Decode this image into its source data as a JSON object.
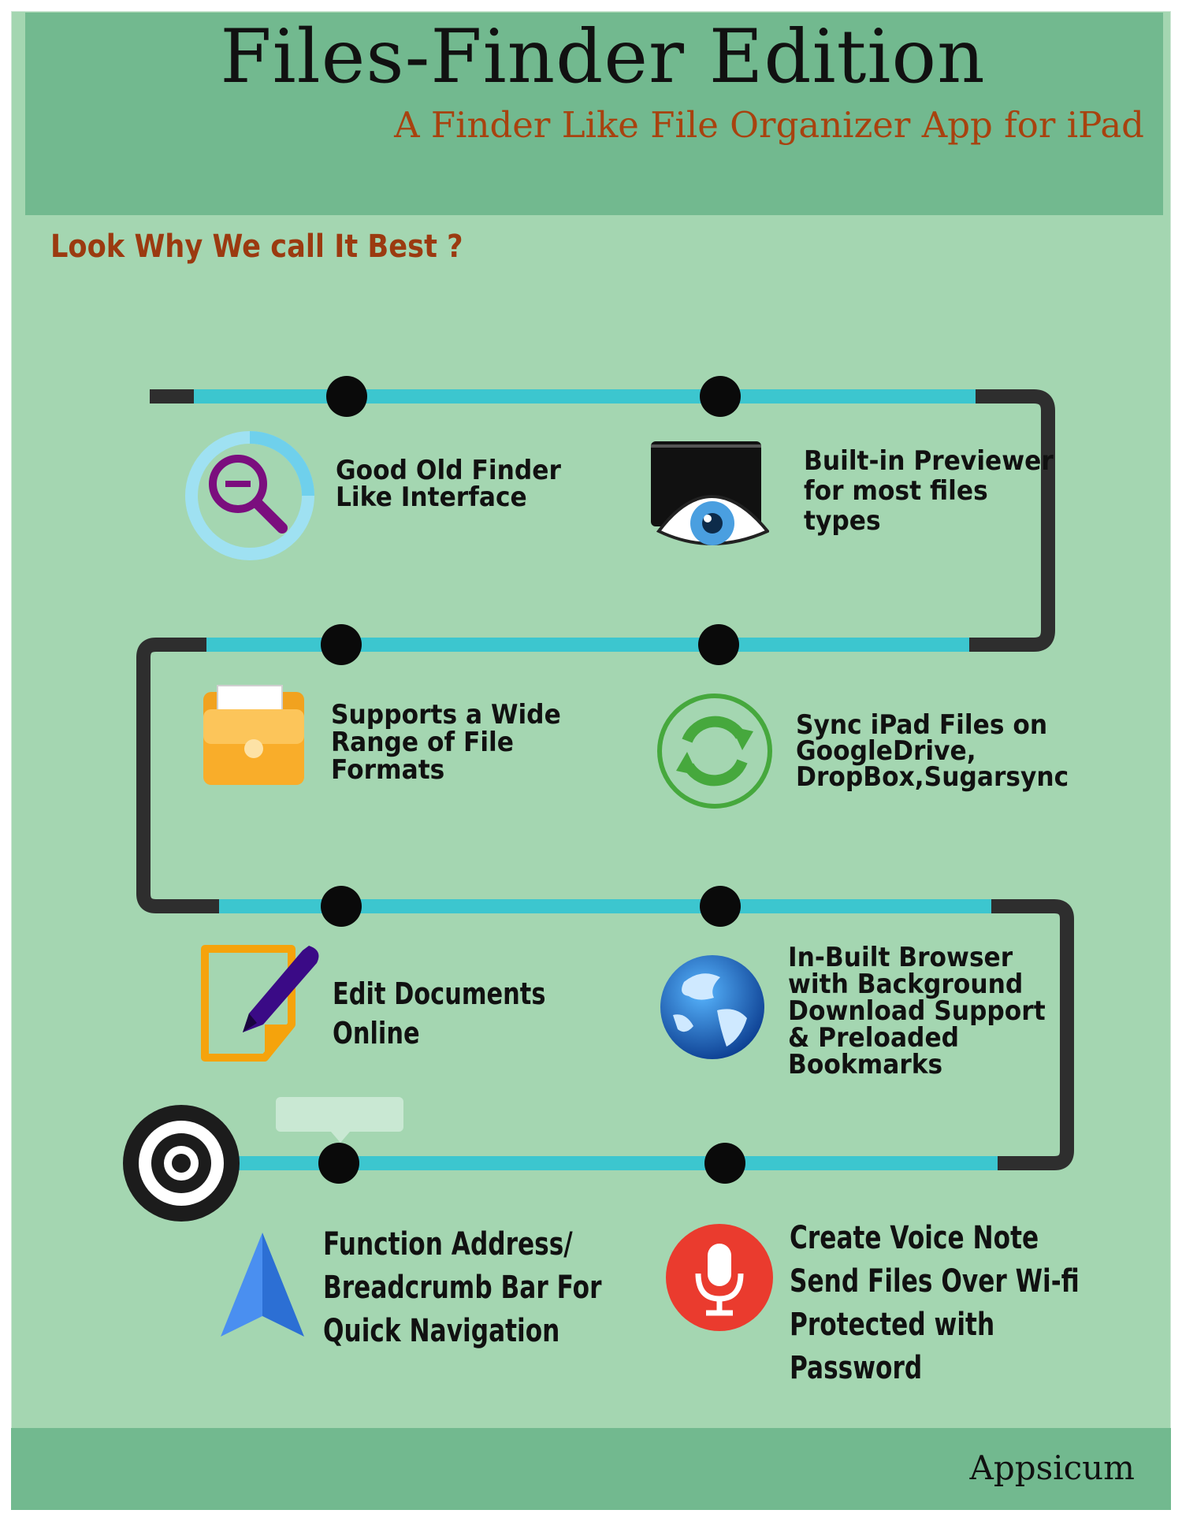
{
  "header": {
    "title": "Files-Finder Edition",
    "subtitle": "A Finder Like File Organizer App for iPad"
  },
  "section": {
    "heading": "Look Why We call It Best ?"
  },
  "features": [
    {
      "label": "Good Old Finder\nLike Interface",
      "icon": "magnifier-icon"
    },
    {
      "label": "Built-in Previewer\nfor most files\ntypes",
      "icon": "eye-icon"
    },
    {
      "label": "Supports a Wide\nRange of File\nFormats",
      "icon": "folder-icon"
    },
    {
      "label": "Sync iPad Files on\nGoogleDrive,\nDropBox,Sugarsync",
      "icon": "sync-icon"
    },
    {
      "label": "Edit Documents\nOnline",
      "icon": "edit-document-icon"
    },
    {
      "label": "In-Built Browser\nwith Background\nDownload Support\n& Preloaded\nBookmarks",
      "icon": "globe-icon"
    },
    {
      "label": "Function Address/\nBreadcrumb Bar For\nQuick Navigation",
      "icon": "navigation-arrow-icon"
    },
    {
      "label": "Create Voice Note\nSend Files Over Wi-fi\nProtected with Password",
      "icon": "microphone-icon"
    }
  ],
  "colors": {
    "background": "#a4d6b1",
    "header_band": "#72b98f",
    "track_cyan": "#3cc6cf",
    "track_dark": "#2e2e2e",
    "heading_orange": "#9b3a10"
  },
  "footer": {
    "brand": "Appsicum"
  }
}
